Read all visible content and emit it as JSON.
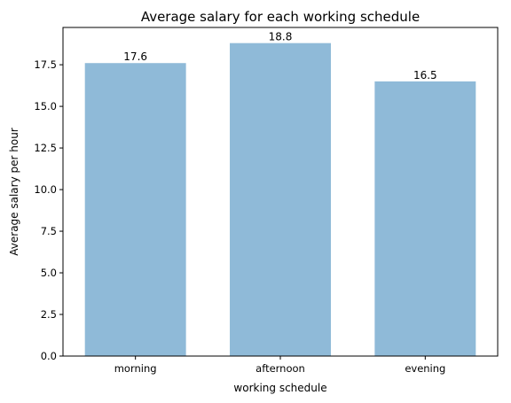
{
  "chart_data": {
    "type": "bar",
    "title": "Average salary for each working schedule",
    "xlabel": "working schedule",
    "ylabel": "Average salary per hour",
    "categories": [
      "morning",
      "afternoon",
      "evening"
    ],
    "values": [
      17.6,
      18.8,
      16.5
    ],
    "value_labels": [
      "17.6",
      "18.8",
      "16.5"
    ],
    "ylim": [
      0,
      19.74
    ],
    "yticks": [
      0.0,
      2.5,
      5.0,
      7.5,
      10.0,
      12.5,
      15.0,
      17.5
    ],
    "ytick_labels": [
      "0.0",
      "2.5",
      "5.0",
      "7.5",
      "10.0",
      "12.5",
      "15.0",
      "17.5"
    ],
    "grid": false,
    "bar_color": "#8fbad8"
  }
}
